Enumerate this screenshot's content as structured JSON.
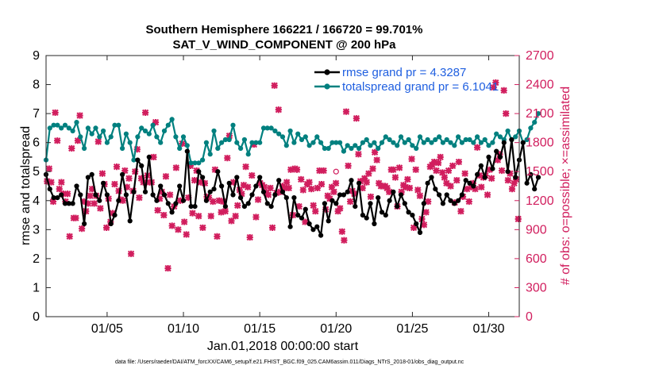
{
  "chart_data": {
    "type": "line",
    "title": [
      "Southern Hemisphere 166221 / 166720 = 99.701%",
      "SAT_V_WIND_COMPONENT @ 200 hPa"
    ],
    "xlabel": "Jan.01,2018 00:00:00 start",
    "ylabel": "rmse and totalspread",
    "y2label": "# of obs: o=possible; ×=assimilated",
    "xlim": [
      1,
      32
    ],
    "ylim": [
      0,
      9
    ],
    "y2lim": [
      0,
      2700
    ],
    "xticks": [
      5,
      10,
      15,
      20,
      25,
      30
    ],
    "xtick_labels": [
      "01/05",
      "01/10",
      "01/15",
      "01/20",
      "01/25",
      "01/30"
    ],
    "yticks": [
      0,
      1,
      2,
      3,
      4,
      5,
      6,
      7,
      8,
      9
    ],
    "ytick_labels": [
      "0",
      "1",
      "2",
      "3",
      "4",
      "5",
      "6",
      "7",
      "8",
      "9"
    ],
    "y2ticks": [
      0,
      300,
      600,
      900,
      1200,
      1500,
      1800,
      2100,
      2400,
      2700
    ],
    "y2tick_labels": [
      "0",
      "300",
      "600",
      "900",
      "1200",
      "1500",
      "1800",
      "2100",
      "2400",
      "2700"
    ],
    "colors": {
      "rmse": "#000000",
      "spread": "#00807f",
      "obs": "#d11e5e",
      "legend_text": "#1f5fe0"
    },
    "x_start": 1.0,
    "x_step": 0.25,
    "series": [
      {
        "name": "rmse grand pr = 4.3287",
        "color": "#000000",
        "values": [
          4.9,
          4.4,
          4.1,
          4.1,
          4.2,
          3.9,
          3.9,
          3.9,
          4.5,
          4.2,
          3.2,
          4.8,
          4.9,
          4.2,
          4.0,
          4.6,
          4.2,
          3.2,
          3.5,
          4.0,
          4.9,
          4.2,
          3.3,
          4.3,
          5.4,
          5.2,
          4.3,
          5.5,
          4.2,
          4.0,
          4.5,
          4.2,
          3.9,
          3.6,
          3.9,
          4.5,
          4.0,
          5.7,
          3.8,
          3.8,
          5.0,
          4.8,
          4.0,
          4.3,
          4.4,
          5.0,
          4.5,
          3.8,
          4.6,
          4.2,
          4.8,
          4.1,
          3.8,
          3.9,
          4.2,
          4.5,
          4.8,
          4.3,
          3.9,
          3.8,
          4.2,
          4.7,
          4.3,
          4.1,
          3.1,
          4.1,
          3.5,
          3.4,
          3.7,
          3.2,
          3.0,
          3.1,
          2.8,
          3.9,
          3.3,
          4.0,
          3.9,
          4.2,
          4.2,
          4.3,
          4.7,
          3.8,
          4.6,
          3.5,
          3.4,
          3.9,
          3.2,
          4.1,
          3.6,
          3.5,
          4.0,
          4.3,
          3.8,
          4.2,
          3.9,
          3.6,
          3.5,
          3.2,
          2.9,
          3.9,
          4.6,
          4.8,
          4.4,
          4.2,
          3.9,
          4.2,
          4.0,
          3.9,
          4.0,
          4.2,
          4.7,
          4.6,
          4.5,
          4.9,
          5.2,
          4.8,
          5.5,
          5.1,
          5.7,
          5.5,
          6.0,
          5.0,
          6.1,
          4.8,
          5.4,
          6.0,
          4.6,
          4.9,
          4.4,
          4.8
        ],
        "markers": true
      },
      {
        "name": "totalspread grand pr = 6.1041",
        "color": "#00807f",
        "values": [
          5.4,
          6.5,
          6.6,
          6.6,
          6.5,
          6.6,
          6.5,
          6.4,
          6.7,
          6.2,
          5.8,
          6.5,
          6.3,
          6.5,
          6.2,
          6.4,
          6.0,
          6.2,
          6.6,
          6.6,
          5.8,
          6.3,
          6.0,
          5.4,
          6.2,
          6.5,
          6.4,
          6.3,
          6.6,
          6.2,
          6.0,
          6.4,
          6.6,
          6.8,
          6.2,
          5.8,
          6.2,
          5.9,
          5.3,
          5.3,
          5.3,
          5.4,
          6.0,
          5.6,
          6.4,
          5.8,
          6.0,
          6.1,
          6.1,
          6.6,
          6.0,
          5.8,
          6.1,
          5.6,
          6.0,
          6.0,
          6.0,
          6.5,
          6.5,
          6.5,
          6.4,
          6.3,
          6.2,
          5.9,
          6.4,
          6.0,
          6.3,
          6.1,
          6.2,
          5.9,
          6.0,
          6.2,
          6.0,
          5.8,
          5.8,
          6.0,
          6.0,
          6.0,
          5.7,
          5.9,
          5.8,
          5.9,
          5.8,
          6.0,
          6.1,
          5.9,
          6.0,
          5.8,
          6.0,
          6.2,
          6.1,
          6.0,
          5.9,
          6.2,
          6.0,
          6.1,
          5.9,
          5.8,
          6.2,
          6.0,
          6.1,
          6.0,
          6.1,
          6.2,
          6.0,
          6.1,
          6.0,
          5.9,
          6.2,
          6.0,
          6.1,
          6.1,
          6.0,
          6.2,
          6.0,
          6.1,
          5.9,
          6.0,
          6.3,
          6.2,
          6.1,
          6.4,
          6.1,
          6.2,
          6.4,
          6.0,
          6.1,
          6.5,
          6.7,
          7.0
        ],
        "markers": true
      }
    ],
    "obs_assimilated_values": [
      1400,
      1530,
      1390,
      1190,
      2110,
      1820,
      1320,
      1390,
      1270,
      1190,
      1270,
      830,
      1740,
      1020,
      1020,
      1820,
      2080,
      910,
      1190,
      1090,
      1170,
      1250,
      1320,
      1170,
      1250,
      1810,
      1120,
      1480,
      1370,
      920,
      1220,
      980,
      1070,
      1370,
      1550,
      1300,
      1210,
      1200,
      1510,
      1340,
      1430,
      650,
      1300,
      1500,
      1730,
      1230,
      1430,
      1390,
      2110,
      1460,
      1390,
      1390,
      1650,
      2010,
      1100,
      1220,
      1290,
      1050,
      1450,
      500,
      1260,
      940,
      1140,
      1540,
      900,
      1200,
      1790,
      980,
      850,
      1230,
      1560,
      1070,
      1410,
      1510,
      1040,
      1390,
      920,
      1380,
      1240,
      1230,
      1040,
      1190,
      1520,
      830,
      1200,
      1080,
      1190,
      1090,
      1640,
      1870,
      990,
      1390,
      1040,
      1150,
      1310,
      1270,
      1360,
      1550,
      1340,
      820,
      1460,
      1780,
      1030,
      1210,
      1380,
      1360,
      1340,
      1280,
      1260,
      1330,
      920,
      2390,
      1280,
      2140,
      1290,
      1350,
      1330,
      1390,
      1330,
      1520,
      1050,
      1530,
      1520,
      1140,
      1420,
      1310,
      980,
      1370,
      1390,
      1320,
      1150,
      1090,
      1330,
      1510,
      1370,
      1510,
      1110,
      1250,
      1220,
      1340,
      1290,
      1380,
      1090,
      1120,
      880,
      790,
      2120,
      1560,
      1190,
      1300,
      1270,
      2050,
      1680,
      1400,
      1330,
      1430,
      1390,
      1480,
      1240,
      1530,
      1700,
      1620,
      1380,
      1350,
      1350,
      1350,
      1330,
      1290,
      1520,
      1520,
      1440,
      1140,
      1540,
      1290,
      1360,
      1340,
      1420,
      1330,
      1630,
      920,
      1520,
      1310,
      1250,
      1010,
      950,
      1080,
      1190,
      1550,
      1570,
      1600,
      1510,
      1590,
      1650,
      1490,
      1440,
      1380,
      1510,
      1350,
      1560,
      1180,
      1410,
      1600,
      1090,
      1240,
      1480,
      1320,
      1190,
      1340,
      1380,
      1320,
      1750,
      1460,
      1340,
      1440,
      1460,
      1260,
      1520,
      1430,
      2370,
      2420,
      1620,
      1680,
      1510,
      2340,
      2100,
      1410,
      1480,
      1320,
      1380,
      1420,
      1010
    ],
    "obs_possible_points": [
      [
        20.0,
        1500
      ]
    ]
  },
  "legend": {
    "rmse": "rmse grand pr = 4.3287",
    "spread": "totalspread grand pr = 6.1041"
  },
  "footer": "data file: /Users/raeder/DAI/ATM_forcXX/CAM6_setup/f.e21.FHIST_BGC.f09_025.CAM6assim.011/Diags_NTrS_2018-01/obs_diag_output.nc"
}
